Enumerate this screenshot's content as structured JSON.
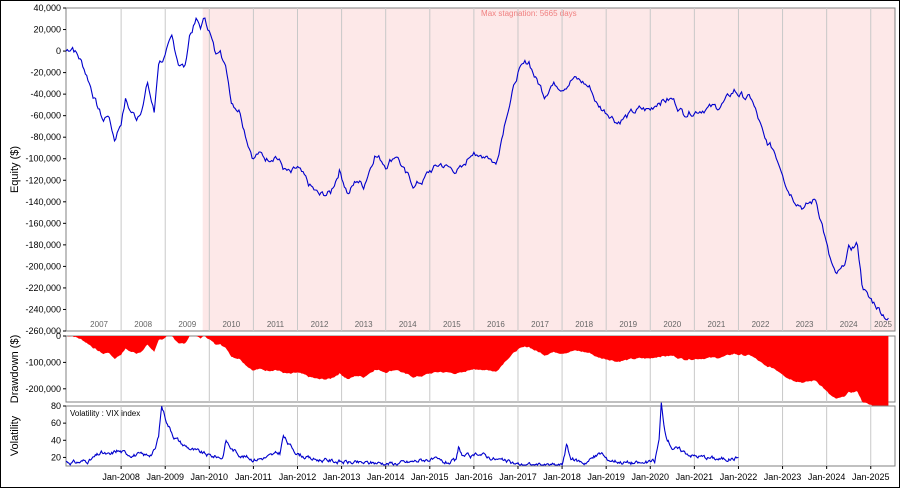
{
  "chart_data": [
    {
      "type": "line",
      "name": "equity",
      "ylabel": "Equity ($)",
      "ylim": [
        -260000,
        40000
      ],
      "yticks": [
        "40,000",
        "20,000",
        "0",
        "-20,000",
        "-40,000",
        "-60,000",
        "-80,000",
        "-100,000",
        "-120,000",
        "-140,000",
        "-160,000",
        "-180,000",
        "-200,000",
        "-220,000",
        "-240,000",
        "-260,000"
      ],
      "ytick_values": [
        40000,
        20000,
        0,
        -20000,
        -40000,
        -60000,
        -80000,
        -100000,
        -120000,
        -140000,
        -160000,
        -180000,
        -200000,
        -220000,
        -240000,
        -260000
      ],
      "year_labels": [
        "2007",
        "2008",
        "2009",
        "2010",
        "2011",
        "2012",
        "2013",
        "2014",
        "2015",
        "2016",
        "2017",
        "2018",
        "2019",
        "2020",
        "2021",
        "2022",
        "2023",
        "2024",
        "2025"
      ],
      "stagnation_label": "Max stagnation: 5665 days",
      "stagnation_start": 2009.85,
      "colors": {
        "line": "#0000cc",
        "stagnation": "#fde8e8"
      },
      "x": [
        2006.75,
        2006.9,
        2007.1,
        2007.25,
        2007.45,
        2007.6,
        2007.7,
        2007.85,
        2008.0,
        2008.1,
        2008.2,
        2008.35,
        2008.5,
        2008.6,
        2008.75,
        2008.85,
        2009.0,
        2009.15,
        2009.3,
        2009.45,
        2009.55,
        2009.7,
        2009.8,
        2009.9,
        2010.0,
        2010.15,
        2010.25,
        2010.4,
        2010.5,
        2010.7,
        2010.85,
        2011.0,
        2011.1,
        2011.3,
        2011.5,
        2011.7,
        2011.85,
        2012.0,
        2012.25,
        2012.5,
        2012.75,
        2012.95,
        2013.15,
        2013.35,
        2013.5,
        2013.75,
        2014.0,
        2014.25,
        2014.45,
        2014.65,
        2014.85,
        2015.0,
        2015.25,
        2015.5,
        2015.75,
        2016.0,
        2016.1,
        2016.3,
        2016.5,
        2016.6,
        2016.75,
        2016.9,
        2017.0,
        2017.25,
        2017.4,
        2017.6,
        2017.75,
        2018.0,
        2018.25,
        2018.5,
        2018.65,
        2018.8,
        2018.95,
        2019.1,
        2019.25,
        2019.5,
        2019.75,
        2020.0,
        2020.2,
        2020.5,
        2020.75,
        2021.0,
        2021.25,
        2021.5,
        2021.75,
        2021.9,
        2022.1,
        2022.3,
        2022.5,
        2022.6,
        2022.8,
        2023.0,
        2023.1,
        2023.25,
        2023.5,
        2023.75,
        2023.9,
        2024.05,
        2024.2,
        2024.35,
        2024.5,
        2024.7,
        2024.8,
        2024.95,
        2025.1,
        2025.25,
        2025.4
      ],
      "y": [
        0,
        5000,
        -10000,
        -25000,
        -50000,
        -65000,
        -58000,
        -82000,
        -65000,
        -45000,
        -55000,
        -62000,
        -48000,
        -30000,
        -58000,
        -10000,
        -5000,
        10000,
        -10000,
        -15000,
        15000,
        28000,
        22000,
        30000,
        20000,
        -5000,
        5000,
        -20000,
        -45000,
        -55000,
        -80000,
        -98000,
        -95000,
        -100000,
        -95000,
        -110000,
        -115000,
        -110000,
        -125000,
        -135000,
        -132000,
        -110000,
        -132000,
        -120000,
        -125000,
        -95000,
        -105000,
        -95000,
        -115000,
        -125000,
        -120000,
        -112000,
        -105000,
        -110000,
        -110000,
        -90000,
        -100000,
        -95000,
        -105000,
        -85000,
        -55000,
        -35000,
        -20000,
        -10000,
        -25000,
        -40000,
        -30000,
        -32000,
        -25000,
        -30000,
        -35000,
        -50000,
        -55000,
        -58000,
        -65000,
        -60000,
        -55000,
        -55000,
        -45000,
        -45000,
        -57000,
        -55000,
        -52000,
        -53000,
        -45000,
        -37000,
        -42000,
        -45000,
        -70000,
        -85000,
        -92000,
        -110000,
        -125000,
        -135000,
        -145000,
        -138000,
        -160000,
        -190000,
        -210000,
        -205000,
        -185000,
        -180000,
        -215000,
        -230000,
        -235000,
        -242000,
        -248000
      ]
    },
    {
      "type": "area",
      "name": "drawdown",
      "ylabel": "Drawdown ($)",
      "ylim": [
        -250000,
        0
      ],
      "yticks": [
        "0",
        "-100,000",
        "-200,000"
      ],
      "ytick_values": [
        0,
        -100000,
        -200000
      ],
      "colors": {
        "fill": "#ff0000"
      }
    },
    {
      "type": "line",
      "name": "volatility",
      "ylabel": "Volatility",
      "legend": "Volatility : VIX index",
      "ylim": [
        10,
        80
      ],
      "yticks": [
        "80",
        "60",
        "40",
        "20"
      ],
      "ytick_values": [
        80,
        60,
        40,
        20
      ],
      "xticks": [
        "Jan-2008",
        "Jan-2009",
        "Jan-2010",
        "Jan-2011",
        "Jan-2012",
        "Jan-2013",
        "Jan-2014",
        "Jan-2015",
        "Jan-2016",
        "Jan-2017",
        "Jan-2018",
        "Jan-2019",
        "Jan-2020",
        "Jan-2021",
        "Jan-2022",
        "Jan-2023",
        "Jan-2024",
        "Jan-2025"
      ],
      "colors": {
        "line": "#0000cc"
      },
      "x": [
        2006.75,
        2007.0,
        2007.3,
        2007.55,
        2007.75,
        2007.9,
        2008.1,
        2008.35,
        2008.55,
        2008.7,
        2008.78,
        2008.85,
        2008.92,
        2009.05,
        2009.2,
        2009.4,
        2009.7,
        2010.0,
        2010.3,
        2010.38,
        2010.5,
        2010.75,
        2011.0,
        2011.3,
        2011.6,
        2011.68,
        2011.8,
        2012.0,
        2012.3,
        2012.6,
        2013.0,
        2013.4,
        2013.8,
        2014.1,
        2014.5,
        2014.8,
        2015.0,
        2015.3,
        2015.6,
        2015.65,
        2015.75,
        2016.0,
        2016.1,
        2016.5,
        2016.8,
        2017.0,
        2017.5,
        2018.0,
        2018.1,
        2018.2,
        2018.5,
        2018.9,
        2019.0,
        2019.5,
        2019.8,
        2020.1,
        2020.2,
        2020.25,
        2020.35,
        2020.5,
        2020.7,
        2021.0,
        2021.3,
        2021.6,
        2021.9,
        2022.0
      ],
      "y": [
        15,
        14,
        17,
        25,
        22,
        28,
        25,
        23,
        22,
        25,
        30,
        45,
        80,
        60,
        45,
        35,
        27,
        22,
        20,
        40,
        30,
        22,
        18,
        20,
        25,
        45,
        35,
        25,
        18,
        17,
        15,
        13,
        14,
        13,
        14,
        17,
        18,
        14,
        15,
        30,
        22,
        20,
        25,
        18,
        14,
        12,
        11,
        11,
        35,
        18,
        14,
        25,
        18,
        14,
        13,
        15,
        40,
        82,
        45,
        32,
        28,
        22,
        20,
        18,
        19,
        20
      ]
    }
  ]
}
